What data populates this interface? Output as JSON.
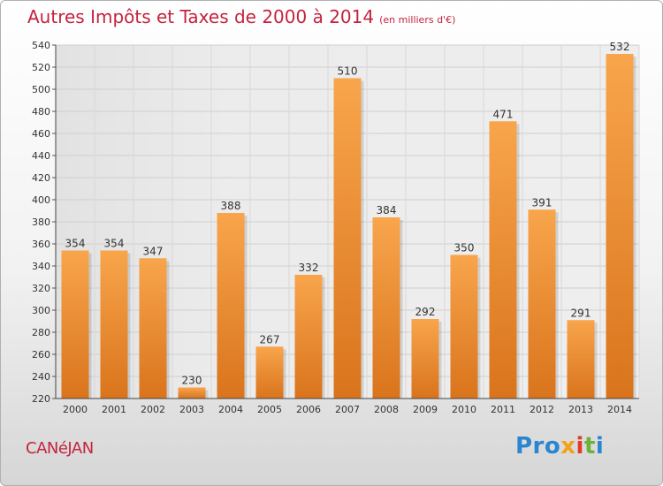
{
  "header": {
    "title": "Autres Impôts et Taxes de 2000 à 2014",
    "subtitle": "(en milliers d'€)"
  },
  "footer": {
    "commune": "CANéJAN",
    "logo_parts": [
      "Pro",
      "x",
      "i",
      "t",
      "i"
    ]
  },
  "colors": {
    "title": "#c4233f",
    "bar_light": "#f8a54c",
    "bar_dark": "#d9741c",
    "grid": "#cccccc"
  },
  "chart_data": {
    "type": "bar",
    "title": "Autres Impôts et Taxes de 2000 à 2014",
    "subtitle": "(en milliers d'€)",
    "categories": [
      "2000",
      "2001",
      "2002",
      "2003",
      "2004",
      "2005",
      "2006",
      "2007",
      "2008",
      "2009",
      "2010",
      "2011",
      "2012",
      "2013",
      "2014"
    ],
    "values": [
      354,
      354,
      347,
      230,
      388,
      267,
      332,
      510,
      384,
      292,
      350,
      471,
      391,
      291,
      532
    ],
    "ylim": [
      220,
      540
    ],
    "ytick_step": 20,
    "grid": true,
    "xlabel": "",
    "ylabel": ""
  }
}
